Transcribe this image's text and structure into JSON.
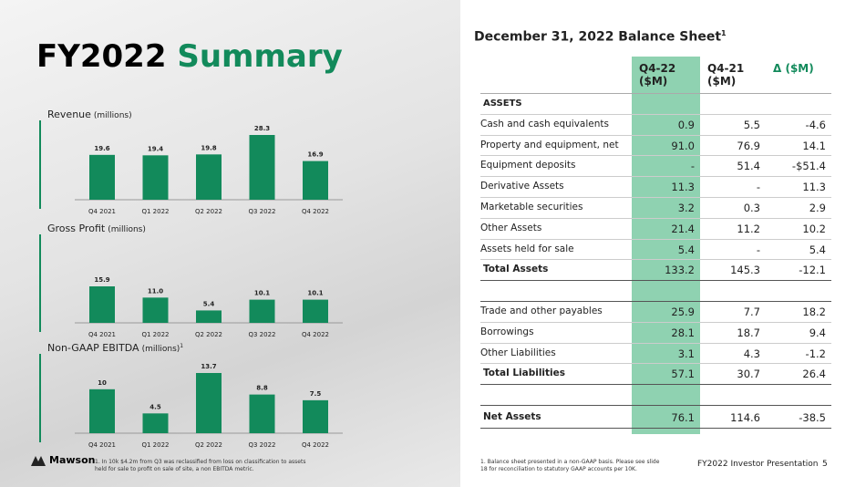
{
  "title_dark": "FY2022",
  "title_green": "Summary",
  "chart_data": [
    {
      "type": "bar",
      "title": "Revenue",
      "unit": "(millions)",
      "categories": [
        "Q4 2021",
        "Q1 2022",
        "Q2 2022",
        "Q3 2022",
        "Q4 2022"
      ],
      "values": [
        19.6,
        19.4,
        19.8,
        28.3,
        16.9
      ],
      "color": "#128a5b"
    },
    {
      "type": "bar",
      "title": "Gross Profit",
      "unit": "(millions)",
      "categories": [
        "Q4 2021",
        "Q1 2022",
        "Q2 2022",
        "Q3 2022",
        "Q4 2022"
      ],
      "values": [
        15.9,
        11.0,
        5.4,
        10.1,
        10.1
      ],
      "value_labels": [
        "15.9",
        "11.0",
        "5.4",
        "10.1",
        "10.1"
      ],
      "color": "#128a5b"
    },
    {
      "type": "bar",
      "title": "Non-GAAP EBITDA",
      "unit": "(millions)",
      "note_mark": "1",
      "categories": [
        "Q4 2021",
        "Q1 2022",
        "Q2 2022",
        "Q3 2022",
        "Q4 2022"
      ],
      "values": [
        10,
        4.5,
        13.7,
        8.8,
        7.5
      ],
      "color": "#128a5b"
    }
  ],
  "table": {
    "heading": "December 31, 2022 Balance Sheet",
    "heading_mark": "1",
    "columns": [
      "Q4-22 ($M)",
      "Q4-21 ($M)",
      "Δ ($M)"
    ],
    "sections": [
      {
        "heading": "ASSETS",
        "rows": [
          {
            "label": "Cash and cash equivalents",
            "cells": [
              "0.9",
              "5.5",
              "-4.6"
            ]
          },
          {
            "label": "Property and equipment, net",
            "cells": [
              "91.0",
              "76.9",
              "14.1"
            ]
          },
          {
            "label": "Equipment deposits",
            "cells": [
              "-",
              "51.4",
              "-$51.4"
            ]
          },
          {
            "label": "Derivative Assets",
            "cells": [
              "11.3",
              "-",
              "11.3"
            ]
          },
          {
            "label": "Marketable securities",
            "cells": [
              "3.2",
              "0.3",
              "2.9"
            ]
          },
          {
            "label": "Other Assets",
            "cells": [
              "21.4",
              "11.2",
              "10.2"
            ]
          },
          {
            "label": "Assets held for sale",
            "cells": [
              "5.4",
              "-",
              "5.4"
            ]
          }
        ],
        "total": {
          "label": "Total Assets",
          "cells": [
            "133.2",
            "145.3",
            "-12.1"
          ]
        }
      },
      {
        "rows": [
          {
            "label": "Trade and other payables",
            "cells": [
              "25.9",
              "7.7",
              "18.2"
            ]
          },
          {
            "label": "Borrowings",
            "cells": [
              "28.1",
              "18.7",
              "9.4"
            ]
          },
          {
            "label": "Other Liabilities",
            "cells": [
              "3.1",
              "4.3",
              "-1.2"
            ]
          }
        ],
        "total": {
          "label": "Total Liabilities",
          "cells": [
            "57.1",
            "30.7",
            "26.4"
          ]
        }
      }
    ],
    "net": {
      "label": "Net Assets",
      "cells": [
        "76.1",
        "114.6",
        "-38.5"
      ]
    }
  },
  "footnote_left": "1.   In 10k $4.2m from Q3 was reclassified from loss on classification to assets held for sale to profit on sale of site, a non EBITDA metric.",
  "footnote_right": "1.   Balance sheet presented in a non-GAAP basis. Please see slide 18 for reconciliation to statutory GAAP accounts per 10K.",
  "logo": "Mawson",
  "footer": "FY2022 Investor Presentation",
  "page": "5"
}
